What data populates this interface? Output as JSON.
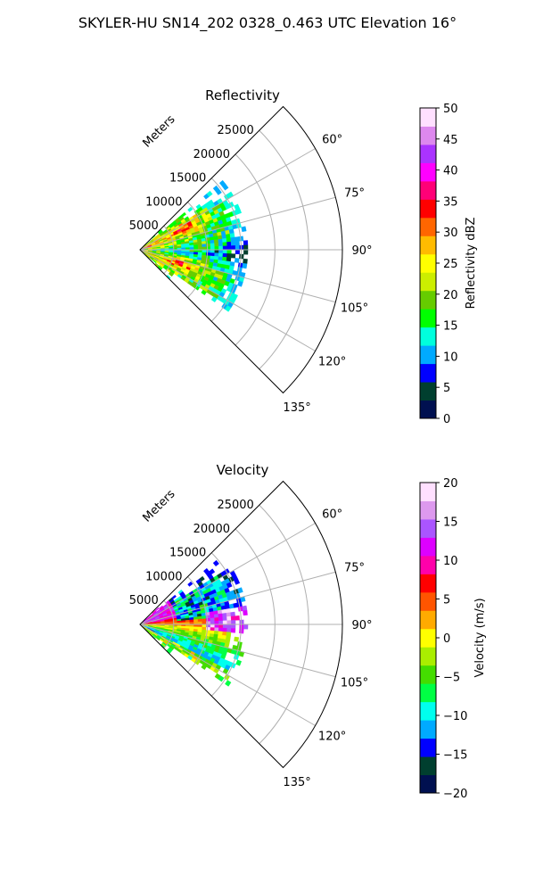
{
  "figure": {
    "title": "SKYLER-HU  SN14_202  0328_0.463 UTC Elevation 16°"
  },
  "chart_data": [
    {
      "type": "polar-sector",
      "title": "Reflectivity",
      "range_label": "Meters",
      "theta_range_deg": [
        45,
        135
      ],
      "r_max": 30000,
      "r_ticks": [
        5000,
        10000,
        15000,
        20000,
        25000
      ],
      "r_tick_labels": [
        "5000",
        "10000",
        "15000",
        "20000",
        "25000"
      ],
      "theta_ticks": [
        60,
        75,
        90,
        105,
        120,
        135
      ],
      "theta_tick_labels": [
        "60°",
        "75°",
        "90°",
        "105°",
        "120°",
        "135°"
      ],
      "grid": true,
      "field_extent_m": 16000,
      "colorbar": {
        "label": "Reflectivity dBZ",
        "vmin": 0,
        "vmax": 50,
        "ticks": [
          0,
          5,
          10,
          15,
          20,
          25,
          30,
          35,
          40,
          45,
          50
        ],
        "tick_labels": [
          "0",
          "5",
          "10",
          "15",
          "20",
          "25",
          "30",
          "35",
          "40",
          "45",
          "50"
        ],
        "stops": [
          "#001050",
          "#003f2f",
          "#0000ff",
          "#00aaff",
          "#00ffdd",
          "#00ff00",
          "#66cc00",
          "#ccee00",
          "#ffff00",
          "#ffbb00",
          "#ff6600",
          "#ff0000",
          "#ff0077",
          "#ff00ff",
          "#aa33ff",
          "#dd88ee",
          "#ffe0ff"
        ]
      }
    },
    {
      "type": "polar-sector",
      "title": "Velocity",
      "range_label": "Meters",
      "theta_range_deg": [
        45,
        135
      ],
      "r_max": 30000,
      "r_ticks": [
        5000,
        10000,
        15000,
        20000,
        25000
      ],
      "r_tick_labels": [
        "5000",
        "10000",
        "15000",
        "20000",
        "25000"
      ],
      "theta_ticks": [
        60,
        75,
        90,
        105,
        120,
        135
      ],
      "theta_tick_labels": [
        "60°",
        "75°",
        "90°",
        "105°",
        "120°",
        "135°"
      ],
      "grid": true,
      "field_extent_m": 16000,
      "colorbar": {
        "label": "Velocity (m/s)",
        "vmin": -20,
        "vmax": 20,
        "ticks": [
          -20,
          -15,
          -10,
          -5,
          0,
          5,
          10,
          15,
          20
        ],
        "tick_labels": [
          "−20",
          "−15",
          "−10",
          "−5",
          "0",
          "5",
          "10",
          "15",
          "20"
        ],
        "stops": [
          "#001050",
          "#003f2f",
          "#0000ff",
          "#00aaff",
          "#00ffee",
          "#00ff44",
          "#44dd00",
          "#aaee00",
          "#ffff00",
          "#ffaa00",
          "#ff5500",
          "#ff0000",
          "#ff00aa",
          "#dd00ff",
          "#aa55ff",
          "#dd99ee",
          "#ffe0ff"
        ]
      }
    }
  ]
}
